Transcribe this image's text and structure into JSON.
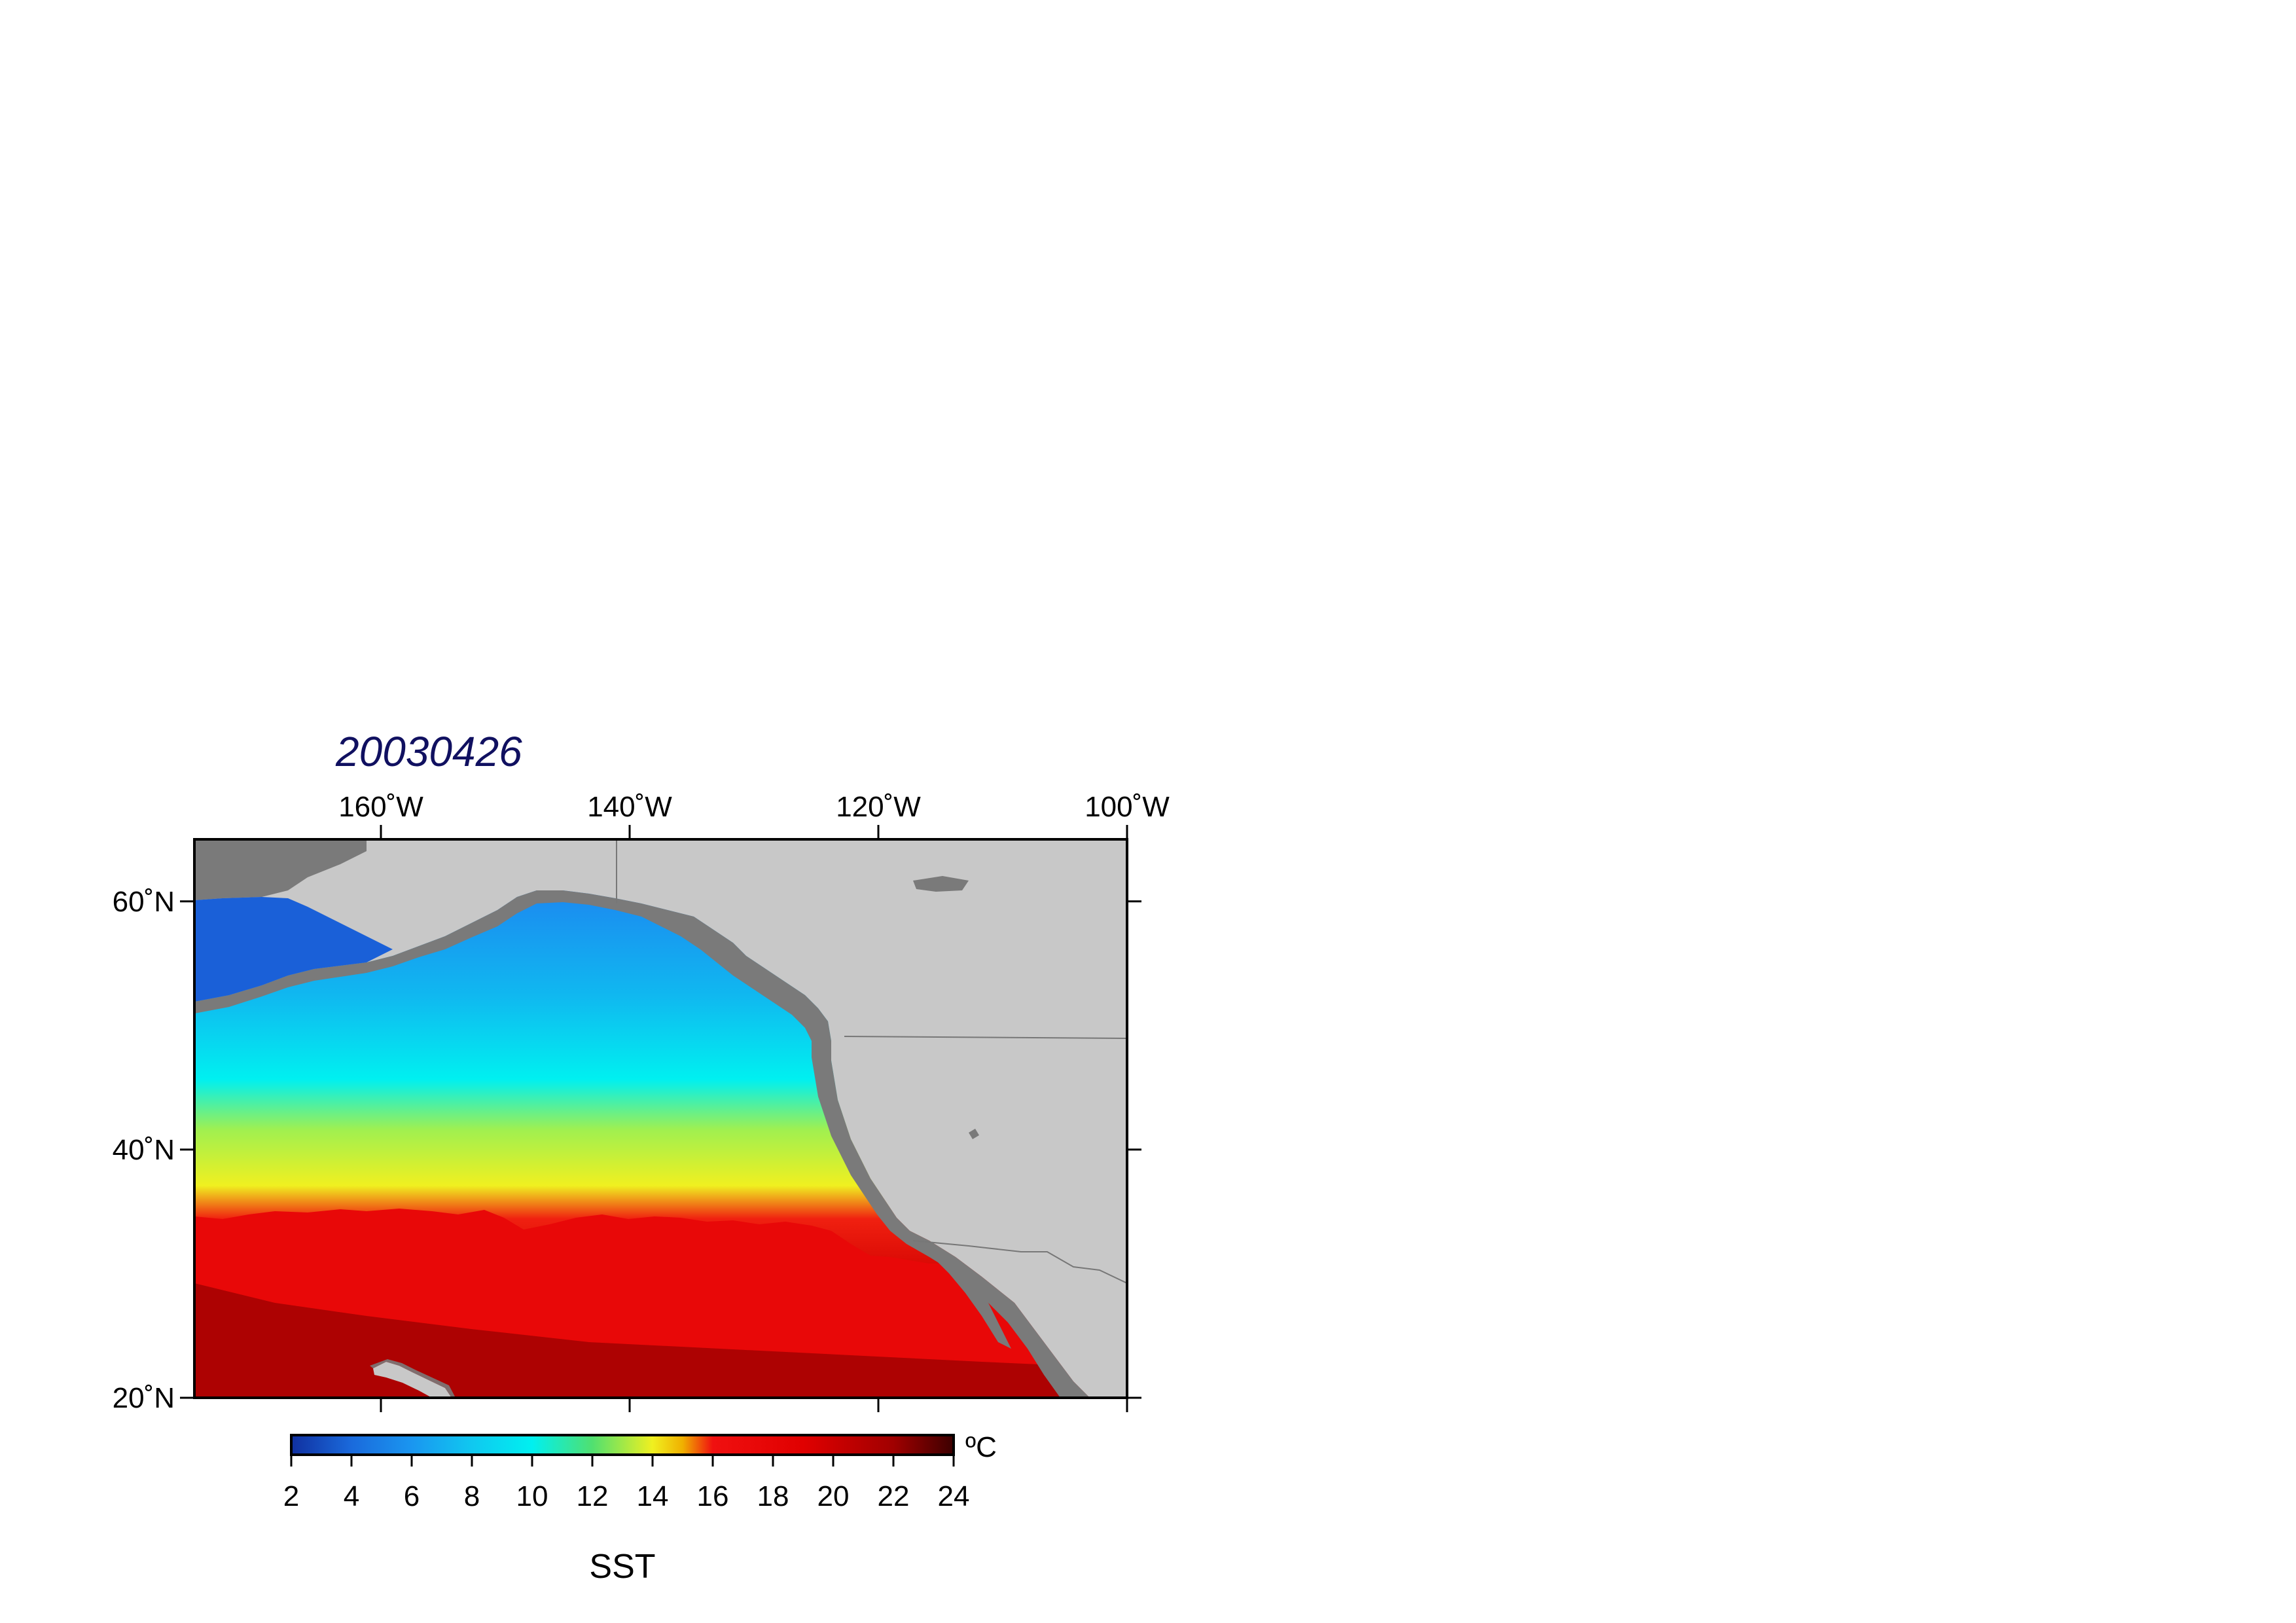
{
  "map": {
    "title": "20030426",
    "variable_label": "SST",
    "unit": "ºC",
    "lon_ticks": [
      {
        "lon": -160,
        "label": "160˚W"
      },
      {
        "lon": -140,
        "label": "140˚W"
      },
      {
        "lon": -120,
        "label": "120˚W"
      },
      {
        "lon": -100,
        "label": "100˚W"
      }
    ],
    "lat_ticks": [
      {
        "lat": 60,
        "label": "60˚N"
      },
      {
        "lat": 40,
        "label": "40˚N"
      },
      {
        "lat": 20,
        "label": "20˚N"
      }
    ],
    "lon_range": [
      -175,
      -100
    ],
    "lat_range": [
      20,
      65
    ],
    "colors": {
      "title": "#101060",
      "land": "#c8c8c8",
      "shelf": "#7a7a7a",
      "frame": "#000000"
    }
  },
  "colorbar": {
    "min": 2,
    "max": 24,
    "tick_labels": [
      "2",
      "4",
      "6",
      "8",
      "10",
      "12",
      "14",
      "16",
      "18",
      "20",
      "22",
      "24"
    ],
    "stops": [
      {
        "value": 2,
        "color": "#1030a0"
      },
      {
        "value": 4,
        "color": "#1a6adc"
      },
      {
        "value": 6,
        "color": "#1a96f0"
      },
      {
        "value": 8,
        "color": "#10c8f0"
      },
      {
        "value": 10,
        "color": "#00f0f0"
      },
      {
        "value": 12,
        "color": "#50e070"
      },
      {
        "value": 14,
        "color": "#f0f020"
      },
      {
        "value": 15,
        "color": "#f0b000"
      },
      {
        "value": 16,
        "color": "#f01010"
      },
      {
        "value": 19,
        "color": "#e00000"
      },
      {
        "value": 22,
        "color": "#a00000"
      },
      {
        "value": 24,
        "color": "#3c0000"
      }
    ]
  }
}
